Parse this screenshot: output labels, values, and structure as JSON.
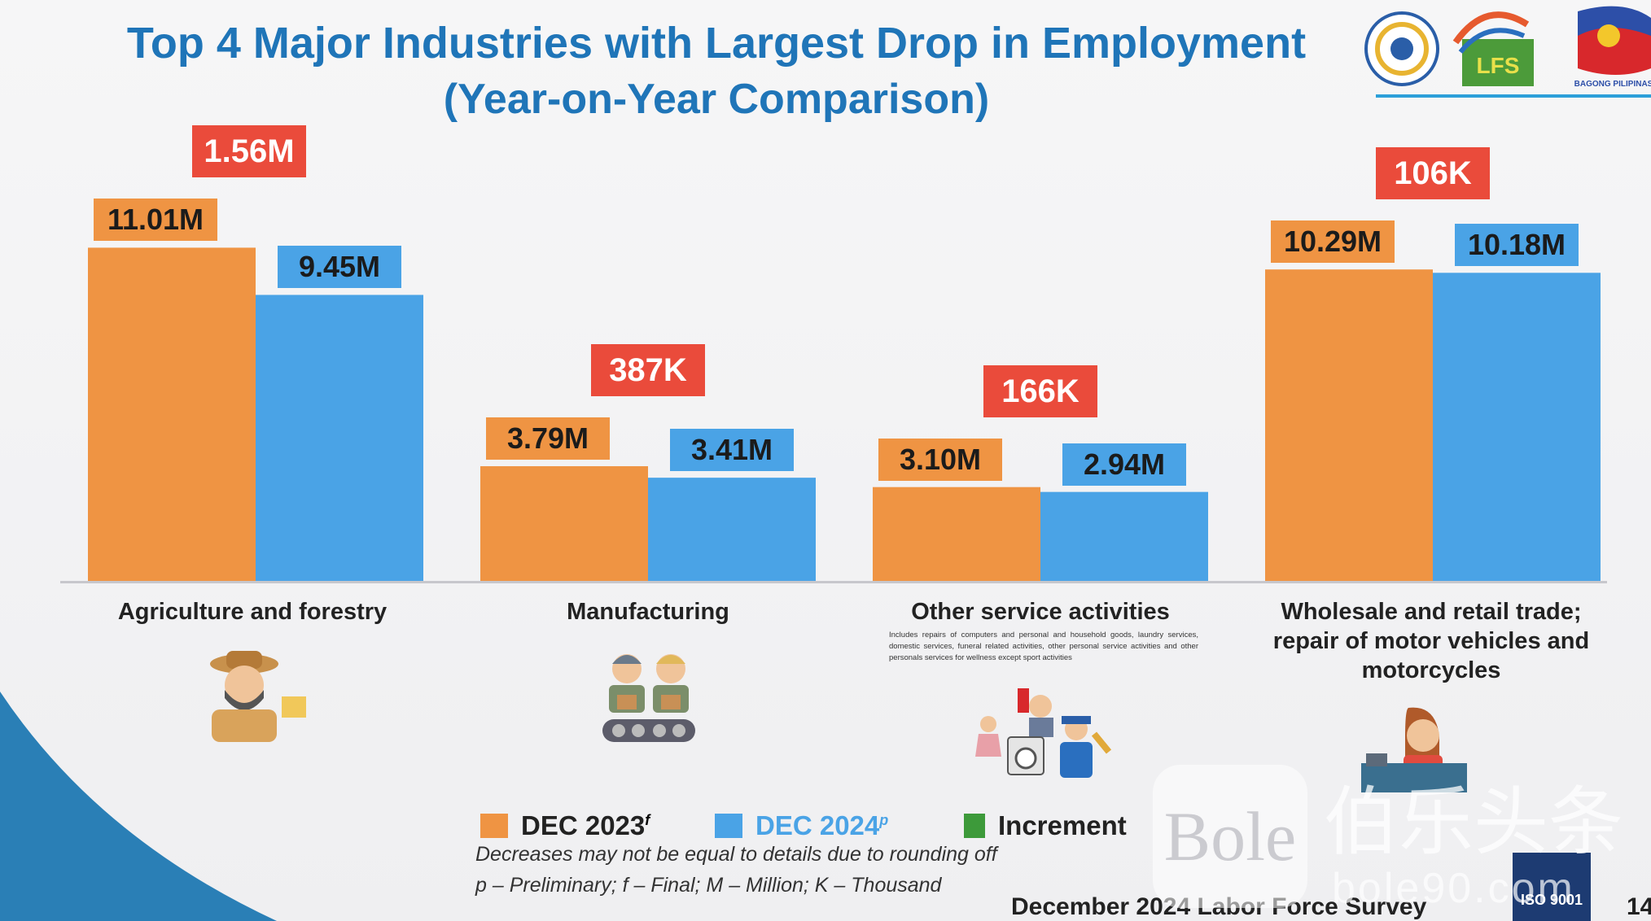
{
  "title": "Top 4 Major Industries with Largest Drop in Employment",
  "subtitle": "(Year-on-Year Comparison)",
  "colors": {
    "dec2023": "#ef9443",
    "dec2024": "#4aa3e6",
    "increment": "#3d9a3a",
    "drop": "#ea4b3b",
    "title": "#1f75b8"
  },
  "chart_data": {
    "type": "bar",
    "unit": "millions of employed persons",
    "categories": [
      "Agriculture and forestry",
      "Manufacturing",
      "Other service activities",
      "Wholesale and retail trade; repair of motor vehicles and motorcycles"
    ],
    "series": [
      {
        "name": "DEC 2023",
        "values": [
          11.01,
          3.79,
          3.1,
          10.29
        ]
      },
      {
        "name": "DEC 2024",
        "values": [
          9.45,
          3.41,
          2.94,
          10.18
        ]
      }
    ],
    "value_labels": {
      "DEC 2023": [
        "11.01M",
        "3.79M",
        "3.10M",
        "10.29M"
      ],
      "DEC 2024": [
        "9.45M",
        "3.41M",
        "2.94M",
        "10.18M"
      ]
    },
    "drops": [
      1.56,
      0.387,
      0.166,
      0.106
    ],
    "drop_labels": [
      "1.56M",
      "387K",
      "166K",
      "106K"
    ],
    "category_note": "Includes repairs of computers and personal and household goods, laundry services, domestic services, funeral related activities, other personal service activities and other personals services for wellness except sport activities",
    "ylim": [
      0,
      12
    ],
    "legend_position": "bottom",
    "grid": false
  },
  "legend": {
    "items": [
      {
        "label": "DEC 2023",
        "sup": "f",
        "color": "#ef9443"
      },
      {
        "label": "DEC 2024",
        "sup": "p",
        "color": "#4aa3e6"
      },
      {
        "label": "Increment",
        "sup": "",
        "color": "#3d9a3a"
      }
    ]
  },
  "notes": {
    "rounding": "Decreases may not be equal to details due to rounding off",
    "abbrev": "p – Preliminary; f – Final; M – Million; K – Thousand"
  },
  "footer": {
    "source": "December 2024 Labor Force Survey",
    "page": "14"
  },
  "logos": {
    "lfs_text": "LFS",
    "bagong_text": "BAGONG PILIPINAS",
    "iso_text": "ISO 9001"
  },
  "watermark": {
    "brand": "Bole",
    "chinese": "伯乐头条",
    "url": "bole90.com"
  }
}
